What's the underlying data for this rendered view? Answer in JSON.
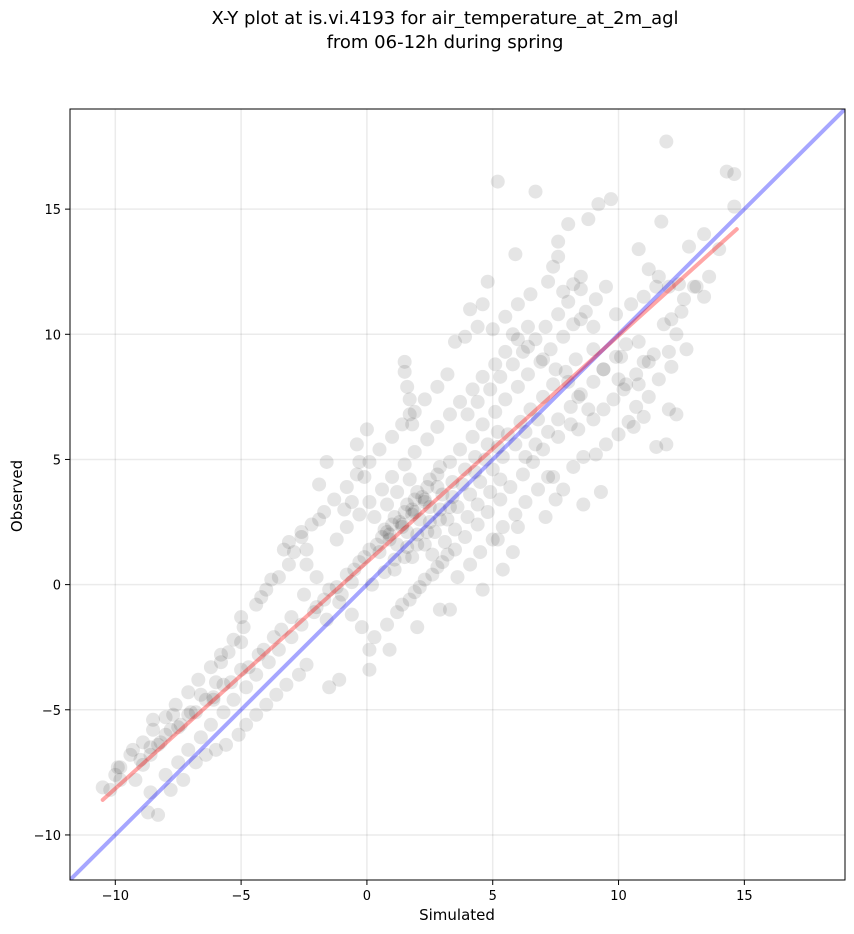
{
  "chart_data": {
    "type": "scatter",
    "title_lines": [
      "X-Y plot at is.vi.4193 for air_temperature_at_2m_agl",
      "from 06-12h during spring"
    ],
    "xlabel": "Simulated",
    "ylabel": "Observed",
    "xlim": [
      -11.8,
      19.0
    ],
    "ylim": [
      -11.8,
      19.0
    ],
    "xticks": [
      -10,
      -5,
      0,
      5,
      10,
      15
    ],
    "yticks": [
      -10,
      -5,
      0,
      5,
      10,
      15
    ],
    "xtick_labels": [
      "−10",
      "−5",
      "0",
      "5",
      "10",
      "15"
    ],
    "ytick_labels": [
      "−10",
      "−5",
      "0",
      "5",
      "10",
      "15"
    ],
    "grid": true,
    "point_color": "#000000",
    "point_alpha": 0.1,
    "reference_line": {
      "slope": 1.0,
      "intercept": 0.0,
      "color": "#0000ff",
      "alpha": 0.35
    },
    "fit_line": {
      "x": [
        -10.5,
        14.7
      ],
      "y": [
        -8.6,
        14.2
      ],
      "color": "#ff0000",
      "alpha": 0.35
    },
    "points": [
      [
        5.2,
        16.1
      ],
      [
        6.7,
        15.7
      ],
      [
        11.9,
        17.7
      ],
      [
        14.3,
        16.5
      ],
      [
        14.6,
        16.4
      ],
      [
        9.2,
        15.2
      ],
      [
        9.7,
        15.4
      ],
      [
        8.8,
        14.6
      ],
      [
        11.7,
        14.5
      ],
      [
        14.6,
        15.1
      ],
      [
        8.0,
        14.4
      ],
      [
        7.6,
        13.7
      ],
      [
        7.6,
        13.1
      ],
      [
        5.9,
        13.2
      ],
      [
        7.4,
        12.7
      ],
      [
        8.2,
        12.0
      ],
      [
        8.5,
        12.3
      ],
      [
        9.5,
        11.9
      ],
      [
        11.6,
        12.3
      ],
      [
        11.2,
        12.6
      ],
      [
        12.0,
        11.9
      ],
      [
        12.4,
        12.0
      ],
      [
        13.0,
        11.9
      ],
      [
        13.4,
        11.5
      ],
      [
        12.5,
        10.9
      ],
      [
        12.1,
        10.6
      ],
      [
        11.8,
        10.4
      ],
      [
        12.3,
        10.0
      ],
      [
        12.7,
        9.4
      ],
      [
        12.0,
        9.3
      ],
      [
        11.6,
        8.2
      ],
      [
        11.0,
        8.9
      ],
      [
        12.1,
        8.7
      ],
      [
        11.2,
        7.5
      ],
      [
        12.0,
        7.0
      ],
      [
        12.3,
        6.8
      ],
      [
        11.0,
        6.7
      ],
      [
        10.6,
        6.3
      ],
      [
        11.9,
        5.6
      ],
      [
        11.5,
        5.5
      ],
      [
        10.8,
        8.0
      ],
      [
        10.2,
        7.8
      ],
      [
        10.0,
        8.2
      ],
      [
        9.3,
        3.7
      ],
      [
        8.6,
        3.2
      ],
      [
        4.6,
        11.2
      ],
      [
        4.8,
        12.1
      ],
      [
        4.1,
        11.0
      ],
      [
        3.5,
        9.7
      ],
      [
        3.9,
        9.9
      ],
      [
        4.4,
        10.3
      ],
      [
        1.5,
        8.9
      ],
      [
        1.5,
        8.5
      ],
      [
        1.6,
        7.9
      ],
      [
        1.7,
        7.4
      ],
      [
        1.7,
        6.8
      ],
      [
        1.8,
        6.4
      ],
      [
        -0.3,
        4.9
      ],
      [
        -1.6,
        4.9
      ],
      [
        -1.9,
        4.0
      ],
      [
        0.0,
        6.2
      ],
      [
        -0.4,
        5.6
      ],
      [
        -0.1,
        4.3
      ],
      [
        -0.6,
        3.3
      ],
      [
        -0.9,
        3.0
      ],
      [
        -1.9,
        2.6
      ],
      [
        -2.6,
        2.1
      ],
      [
        -2.4,
        1.4
      ],
      [
        -3.1,
        1.7
      ],
      [
        -3.3,
        1.4
      ],
      [
        -3.8,
        0.2
      ],
      [
        -4.2,
        -0.5
      ],
      [
        -5.0,
        -1.3
      ],
      [
        -5.0,
        -2.3
      ],
      [
        -5.5,
        -2.7
      ],
      [
        -5.8,
        -3.1
      ],
      [
        -6.0,
        -3.9
      ],
      [
        -6.1,
        -4.6
      ],
      [
        -6.6,
        -4.4
      ],
      [
        -7.0,
        -5.1
      ],
      [
        -7.4,
        -5.6
      ],
      [
        -7.7,
        -5.2
      ],
      [
        -8.0,
        -6.0
      ],
      [
        -8.3,
        -6.4
      ],
      [
        -8.5,
        -5.4
      ],
      [
        -8.6,
        -6.8
      ],
      [
        -8.9,
        -7.2
      ],
      [
        -9.2,
        -7.8
      ],
      [
        -9.3,
        -6.6
      ],
      [
        -9.9,
        -7.3
      ],
      [
        -10.0,
        -7.6
      ],
      [
        -10.5,
        -8.1
      ],
      [
        -8.7,
        -9.1
      ],
      [
        -8.3,
        -9.2
      ],
      [
        -8.6,
        -8.3
      ],
      [
        -7.8,
        -8.2
      ],
      [
        -7.3,
        -7.8
      ],
      [
        -6.8,
        -7.1
      ],
      [
        -6.4,
        -6.8
      ],
      [
        -6.0,
        -6.6
      ],
      [
        -5.6,
        -6.4
      ],
      [
        -5.1,
        -6.0
      ],
      [
        -4.8,
        -5.6
      ],
      [
        -4.4,
        -5.2
      ],
      [
        -4.0,
        -4.8
      ],
      [
        -3.6,
        -4.4
      ],
      [
        -3.2,
        -4.0
      ],
      [
        -2.7,
        -3.6
      ],
      [
        -2.4,
        -3.2
      ],
      [
        -1.5,
        -4.1
      ],
      [
        -1.1,
        -3.8
      ],
      [
        0.1,
        -3.4
      ],
      [
        0.1,
        -2.6
      ],
      [
        0.9,
        -2.6
      ],
      [
        2.0,
        -1.7
      ],
      [
        2.9,
        -1.0
      ],
      [
        3.3,
        -1.0
      ],
      [
        4.6,
        -0.2
      ],
      [
        5.4,
        0.6
      ],
      [
        5.8,
        1.3
      ],
      [
        5.2,
        1.8
      ],
      [
        6.0,
        2.3
      ],
      [
        7.1,
        2.7
      ],
      [
        7.5,
        3.4
      ],
      [
        7.8,
        3.8
      ],
      [
        7.4,
        4.3
      ],
      [
        8.2,
        4.7
      ],
      [
        8.6,
        5.1
      ],
      [
        9.1,
        5.2
      ],
      [
        9.5,
        5.6
      ],
      [
        10.0,
        6.0
      ],
      [
        10.4,
        6.5
      ],
      [
        10.7,
        7.1
      ],
      [
        8.4,
        6.2
      ],
      [
        9.0,
        6.6
      ],
      [
        9.4,
        7.0
      ],
      [
        9.8,
        7.4
      ],
      [
        10.3,
        8.0
      ],
      [
        10.7,
        8.4
      ],
      [
        11.2,
        8.9
      ],
      [
        10.1,
        9.1
      ],
      [
        10.8,
        9.7
      ],
      [
        11.4,
        9.2
      ],
      [
        9.0,
        9.4
      ],
      [
        9.4,
        8.6
      ],
      [
        9.0,
        10.3
      ],
      [
        8.5,
        10.6
      ],
      [
        9.9,
        10.8
      ],
      [
        10.5,
        11.2
      ],
      [
        11.0,
        11.5
      ],
      [
        11.5,
        11.9
      ],
      [
        12.6,
        11.4
      ],
      [
        13.1,
        11.9
      ],
      [
        13.6,
        12.3
      ],
      [
        14.0,
        13.4
      ],
      [
        13.4,
        14.0
      ],
      [
        12.8,
        13.5
      ],
      [
        10.8,
        13.4
      ],
      [
        7.8,
        11.7
      ],
      [
        7.2,
        12.1
      ],
      [
        6.5,
        11.6
      ],
      [
        6.0,
        11.2
      ],
      [
        5.5,
        10.7
      ],
      [
        5.0,
        10.2
      ],
      [
        5.8,
        10.0
      ],
      [
        6.4,
        9.5
      ],
      [
        7.0,
        9.0
      ],
      [
        7.5,
        8.6
      ],
      [
        8.0,
        8.1
      ],
      [
        8.4,
        7.5
      ],
      [
        8.8,
        7.0
      ],
      [
        8.1,
        6.4
      ],
      [
        7.6,
        5.9
      ],
      [
        7.0,
        5.4
      ],
      [
        6.6,
        4.9
      ],
      [
        6.2,
        4.4
      ],
      [
        5.7,
        3.9
      ],
      [
        5.3,
        3.4
      ],
      [
        4.8,
        2.9
      ],
      [
        4.4,
        2.4
      ],
      [
        3.9,
        1.9
      ],
      [
        3.5,
        1.4
      ],
      [
        3.0,
        0.9
      ],
      [
        2.6,
        0.4
      ],
      [
        2.1,
        -0.1
      ],
      [
        1.7,
        -0.6
      ],
      [
        1.2,
        -1.1
      ],
      [
        0.8,
        -1.6
      ],
      [
        0.3,
        -2.1
      ],
      [
        -0.2,
        -1.7
      ],
      [
        -0.6,
        -1.2
      ],
      [
        -1.1,
        -0.7
      ],
      [
        -1.5,
        -0.2
      ],
      [
        -2.0,
        0.3
      ],
      [
        -2.4,
        0.8
      ],
      [
        -2.9,
        1.3
      ],
      [
        -1.2,
        1.8
      ],
      [
        -0.8,
        2.3
      ],
      [
        -0.3,
        2.8
      ],
      [
        0.1,
        3.3
      ],
      [
        0.6,
        3.8
      ],
      [
        1.0,
        4.3
      ],
      [
        1.5,
        4.8
      ],
      [
        1.9,
        5.3
      ],
      [
        2.4,
        5.8
      ],
      [
        2.8,
        6.3
      ],
      [
        3.3,
        6.8
      ],
      [
        3.7,
        7.3
      ],
      [
        4.2,
        7.8
      ],
      [
        4.6,
        8.3
      ],
      [
        5.1,
        8.8
      ],
      [
        5.5,
        9.3
      ],
      [
        6.0,
        9.8
      ],
      [
        6.4,
        10.3
      ],
      [
        3.2,
        8.4
      ],
      [
        2.8,
        7.9
      ],
      [
        2.3,
        7.4
      ],
      [
        1.9,
        6.9
      ],
      [
        1.4,
        6.4
      ],
      [
        1.0,
        5.9
      ],
      [
        0.5,
        5.4
      ],
      [
        0.1,
        4.9
      ],
      [
        -0.4,
        4.4
      ],
      [
        -0.8,
        3.9
      ],
      [
        -1.3,
        3.4
      ],
      [
        -1.7,
        2.9
      ],
      [
        -2.2,
        2.4
      ],
      [
        -2.6,
        1.9
      ],
      [
        -3.1,
        0.8
      ],
      [
        -3.5,
        0.3
      ],
      [
        -4.0,
        -0.2
      ],
      [
        -4.4,
        -0.8
      ],
      [
        -4.9,
        -1.7
      ],
      [
        -5.3,
        -2.2
      ],
      [
        -5.8,
        -2.8
      ],
      [
        -6.2,
        -3.3
      ],
      [
        -6.7,
        -3.8
      ],
      [
        -7.1,
        -4.3
      ],
      [
        -7.6,
        -4.8
      ],
      [
        -8.0,
        -5.3
      ],
      [
        -8.5,
        -5.8
      ],
      [
        -8.9,
        -6.3
      ],
      [
        -9.4,
        -6.8
      ],
      [
        -9.8,
        -7.3
      ],
      [
        -8.0,
        -7.6
      ],
      [
        -7.5,
        -7.1
      ],
      [
        -7.1,
        -6.6
      ],
      [
        -6.6,
        -6.1
      ],
      [
        -6.2,
        -5.6
      ],
      [
        -5.7,
        -5.1
      ],
      [
        -5.3,
        -4.6
      ],
      [
        -4.8,
        -4.1
      ],
      [
        -4.4,
        -3.6
      ],
      [
        -3.9,
        -3.1
      ],
      [
        -3.5,
        -2.6
      ],
      [
        -3.0,
        -2.1
      ],
      [
        -2.6,
        -1.6
      ],
      [
        -2.1,
        -1.1
      ],
      [
        -1.7,
        -0.6
      ],
      [
        -1.2,
        -0.1
      ],
      [
        -0.8,
        0.4
      ],
      [
        -0.3,
        0.9
      ],
      [
        0.1,
        1.4
      ],
      [
        0.6,
        1.9
      ],
      [
        1.0,
        2.4
      ],
      [
        1.5,
        2.9
      ],
      [
        1.9,
        3.4
      ],
      [
        2.4,
        3.9
      ],
      [
        2.8,
        4.4
      ],
      [
        3.3,
        4.9
      ],
      [
        3.7,
        5.4
      ],
      [
        4.2,
        5.9
      ],
      [
        4.6,
        6.4
      ],
      [
        5.1,
        6.9
      ],
      [
        5.5,
        7.4
      ],
      [
        6.0,
        7.9
      ],
      [
        6.4,
        8.4
      ],
      [
        6.9,
        8.9
      ],
      [
        7.3,
        9.4
      ],
      [
        7.8,
        9.9
      ],
      [
        8.2,
        10.4
      ],
      [
        8.7,
        10.9
      ],
      [
        9.1,
        11.4
      ],
      [
        0.2,
        0.0
      ],
      [
        0.7,
        0.5
      ],
      [
        1.1,
        1.0
      ],
      [
        1.6,
        1.5
      ],
      [
        2.0,
        2.0
      ],
      [
        2.5,
        2.5
      ],
      [
        2.9,
        3.0
      ],
      [
        3.4,
        3.5
      ],
      [
        3.8,
        4.0
      ],
      [
        4.3,
        4.5
      ],
      [
        4.7,
        5.0
      ],
      [
        5.2,
        5.5
      ],
      [
        5.6,
        6.0
      ],
      [
        6.1,
        6.5
      ],
      [
        6.5,
        7.0
      ],
      [
        7.0,
        7.5
      ],
      [
        7.4,
        8.0
      ],
      [
        7.9,
        8.5
      ],
      [
        8.3,
        9.0
      ],
      [
        1.2,
        1.6
      ],
      [
        1.6,
        2.1
      ],
      [
        2.1,
        2.6
      ],
      [
        2.5,
        3.1
      ],
      [
        3.0,
        3.6
      ],
      [
        3.4,
        4.1
      ],
      [
        3.9,
        4.6
      ],
      [
        4.3,
        5.1
      ],
      [
        4.8,
        5.6
      ],
      [
        5.2,
        6.1
      ],
      [
        0.7,
        2.2
      ],
      [
        1.1,
        2.7
      ],
      [
        1.6,
        3.2
      ],
      [
        2.0,
        3.7
      ],
      [
        2.5,
        4.2
      ],
      [
        2.9,
        4.7
      ],
      [
        1.8,
        1.1
      ],
      [
        2.3,
        1.6
      ],
      [
        2.7,
        2.1
      ],
      [
        3.2,
        2.6
      ],
      [
        3.6,
        3.1
      ],
      [
        4.1,
        3.6
      ],
      [
        4.5,
        4.1
      ],
      [
        5.0,
        4.6
      ],
      [
        5.4,
        5.1
      ],
      [
        5.9,
        5.6
      ],
      [
        6.3,
        6.1
      ],
      [
        6.8,
        6.6
      ],
      [
        1.4,
        2.4
      ],
      [
        1.9,
        2.9
      ],
      [
        2.3,
        3.4
      ],
      [
        2.8,
        3.9
      ],
      [
        0.9,
        2.0
      ],
      [
        1.3,
        2.5
      ],
      [
        1.8,
        3.0
      ],
      [
        2.2,
        3.5
      ],
      [
        0.5,
        1.3
      ],
      [
        0.9,
        1.8
      ],
      [
        1.4,
        2.3
      ],
      [
        1.8,
        2.8
      ],
      [
        2.3,
        3.3
      ],
      [
        0.3,
        2.7
      ],
      [
        0.8,
        3.2
      ],
      [
        1.2,
        3.7
      ],
      [
        1.7,
        4.2
      ],
      [
        2.6,
        1.2
      ],
      [
        3.1,
        1.7
      ],
      [
        3.5,
        2.2
      ],
      [
        4.0,
        2.7
      ],
      [
        4.4,
        3.2
      ],
      [
        4.9,
        3.7
      ],
      [
        5.3,
        4.2
      ],
      [
        1.1,
        0.6
      ],
      [
        1.5,
        1.1
      ],
      [
        2.0,
        1.6
      ],
      [
        2.4,
        2.1
      ],
      [
        2.9,
        2.6
      ],
      [
        3.3,
        3.1
      ],
      [
        -0.5,
        0.6
      ],
      [
        -0.1,
        1.1
      ],
      [
        0.4,
        1.6
      ],
      [
        0.8,
        2.1
      ],
      [
        -1.0,
        -0.4
      ],
      [
        -0.6,
        0.1
      ],
      [
        -1.6,
        -1.4
      ],
      [
        -2.0,
        -0.9
      ],
      [
        -2.5,
        -0.4
      ],
      [
        -3.4,
        -1.8
      ],
      [
        -3.0,
        -1.3
      ],
      [
        -4.1,
        -2.6
      ],
      [
        -3.7,
        -2.1
      ],
      [
        -4.7,
        -3.3
      ],
      [
        -4.3,
        -2.8
      ],
      [
        -5.4,
        -3.9
      ],
      [
        -5.0,
        -3.4
      ],
      [
        -6.1,
        -4.5
      ],
      [
        -5.7,
        -4.0
      ],
      [
        -6.8,
        -5.1
      ],
      [
        -6.4,
        -4.6
      ],
      [
        -7.5,
        -5.7
      ],
      [
        -7.1,
        -5.2
      ],
      [
        -8.2,
        -6.3
      ],
      [
        -7.8,
        -5.8
      ],
      [
        -9.0,
        -7.0
      ],
      [
        -8.6,
        -6.5
      ],
      [
        -9.8,
        -7.8
      ],
      [
        -10.2,
        -8.2
      ],
      [
        4.0,
        6.8
      ],
      [
        4.4,
        7.3
      ],
      [
        4.9,
        7.8
      ],
      [
        5.3,
        8.3
      ],
      [
        5.8,
        8.8
      ],
      [
        6.2,
        9.3
      ],
      [
        6.7,
        9.8
      ],
      [
        7.1,
        10.3
      ],
      [
        7.6,
        10.8
      ],
      [
        8.0,
        11.3
      ],
      [
        8.5,
        11.8
      ],
      [
        6.3,
        5.1
      ],
      [
        6.7,
        5.6
      ],
      [
        7.2,
        6.1
      ],
      [
        7.6,
        6.6
      ],
      [
        8.1,
        7.1
      ],
      [
        8.5,
        7.6
      ],
      [
        9.0,
        8.1
      ],
      [
        9.4,
        8.6
      ],
      [
        9.9,
        9.1
      ],
      [
        10.3,
        9.6
      ],
      [
        3.6,
        0.3
      ],
      [
        4.1,
        0.8
      ],
      [
        4.5,
        1.3
      ],
      [
        5.0,
        1.8
      ],
      [
        5.4,
        2.3
      ],
      [
        5.9,
        2.8
      ],
      [
        6.3,
        3.3
      ],
      [
        6.8,
        3.8
      ],
      [
        7.2,
        4.3
      ],
      [
        1.4,
        -0.8
      ],
      [
        1.9,
        -0.3
      ],
      [
        2.3,
        0.2
      ],
      [
        2.8,
        0.7
      ],
      [
        3.2,
        1.2
      ]
    ]
  }
}
